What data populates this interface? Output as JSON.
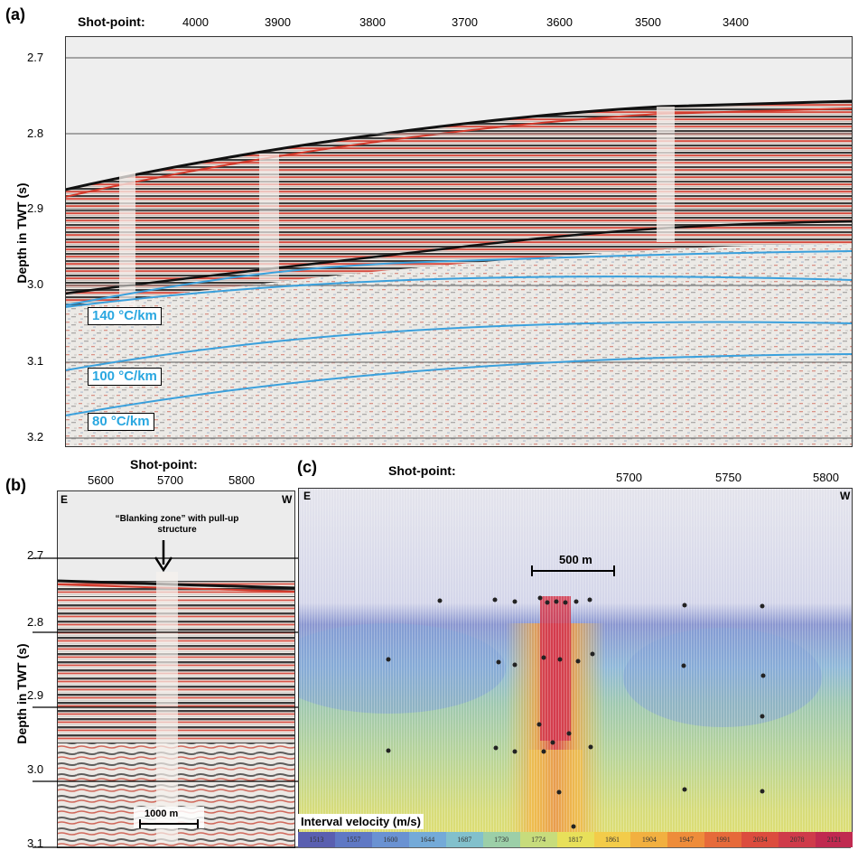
{
  "panel_a": {
    "label": "(a)",
    "shotpoint_label": "Shot-point:",
    "shotpoints": [
      "4000",
      "3900",
      "3800",
      "3700",
      "3600",
      "3500",
      "3400"
    ],
    "ylabel": "Depth in TWT (s)",
    "yticks": [
      "2.7",
      "2.8",
      "2.9",
      "3.0",
      "3.1",
      "3.2"
    ],
    "gradients": [
      "140 °C/km",
      "100 °C/km",
      "80 °C/km"
    ],
    "colors": {
      "gradient_line": "#3aa0dc",
      "seismic_red": "#d2382a",
      "seismic_black": "#1a1a1a"
    }
  },
  "panel_b": {
    "label": "(b)",
    "shotpoint_label": "Shot-point:",
    "shotpoints": [
      "5600",
      "5700",
      "5800"
    ],
    "ylabel": "Depth in TWT (s)",
    "yticks": [
      "2.7",
      "2.8",
      "2.9",
      "3.0",
      "3.1"
    ],
    "east": "E",
    "west": "W",
    "annotation_line1": "“Blanking zone” with pull-up",
    "annotation_line2": "structure",
    "scale": "1000 m"
  },
  "panel_c": {
    "label": "(c)",
    "shotpoint_label": "Shot-point:",
    "shotpoints": [
      "5700",
      "5750",
      "5800"
    ],
    "east": "E",
    "west": "W",
    "scale": "500 m",
    "colorbar_title": "Interval velocity (m/s)",
    "colorbar_values": [
      "1513",
      "1557",
      "1600",
      "1644",
      "1687",
      "1730",
      "1774",
      "1817",
      "1861",
      "1904",
      "1947",
      "1991",
      "2034",
      "2078",
      "2121"
    ],
    "colorbar_colors": [
      "#5a5fb0",
      "#5f78c4",
      "#6a92d2",
      "#74aad8",
      "#82c0cc",
      "#9ccfa8",
      "#c7dc7c",
      "#e8e05a",
      "#f3cc4a",
      "#f2b040",
      "#ee8c3a",
      "#e66a3a",
      "#dc4c3e",
      "#cf3b4a",
      "#c02a50"
    ]
  }
}
